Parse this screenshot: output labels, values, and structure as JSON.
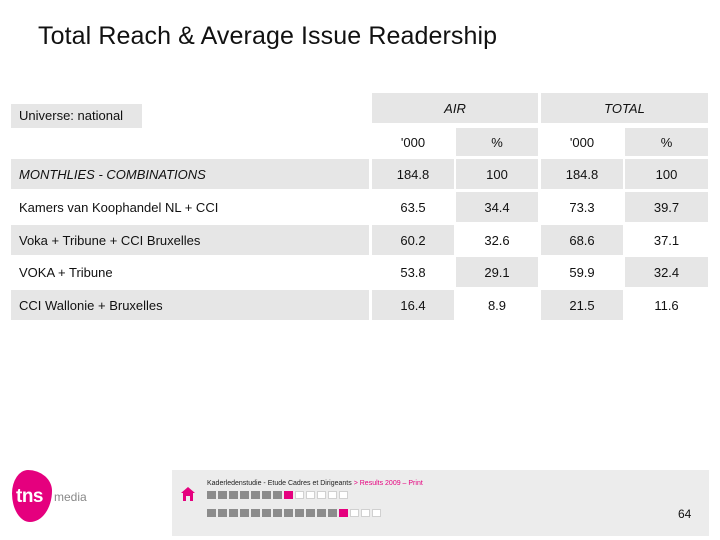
{
  "page": {
    "title": "Total Reach & Average Issue Readership",
    "universe": "Universe: national"
  },
  "table": {
    "groups": [
      "AIR",
      "TOTAL"
    ],
    "units": [
      "'000",
      "%",
      "'000",
      "%"
    ],
    "header_row": {
      "label": "MONTHLIES - COMBINATIONS",
      "values": [
        "184.8",
        "100",
        "184.8",
        "100"
      ]
    },
    "rows": [
      {
        "label": "Kamers van Koophandel NL + CCI",
        "values": [
          "63.5",
          "34.4",
          "73.3",
          "39.7"
        ]
      },
      {
        "label": "Voka + Tribune + CCI Bruxelles",
        "values": [
          "60.2",
          "32.6",
          "68.6",
          "37.1"
        ]
      },
      {
        "label": "VOKA + Tribune",
        "values": [
          "53.8",
          "29.1",
          "59.9",
          "32.4"
        ]
      },
      {
        "label": "CCI Wallonie + Bruxelles",
        "values": [
          "16.4",
          "8.9",
          "21.5",
          "11.6"
        ]
      }
    ]
  },
  "footer": {
    "source": "Kaderledenstudie - Etude Cadres et Dirigeants",
    "separator": " > ",
    "path": "Results 2009 – Print",
    "page_number": "64",
    "nav_top": [
      "dark",
      "dark",
      "dark",
      "dark",
      "dark",
      "dark",
      "dark",
      "pink",
      "light",
      "light",
      "light",
      "light",
      "light"
    ],
    "nav_bottom": [
      "dark",
      "dark",
      "dark",
      "dark",
      "dark",
      "dark",
      "dark",
      "dark",
      "dark",
      "dark",
      "dark",
      "dark",
      "pink",
      "light",
      "light",
      "light"
    ]
  },
  "logo": {
    "tns": "tns",
    "media": "media"
  },
  "colors": {
    "accent": "#e5007e",
    "cell_bg": "#e6e6e6"
  }
}
